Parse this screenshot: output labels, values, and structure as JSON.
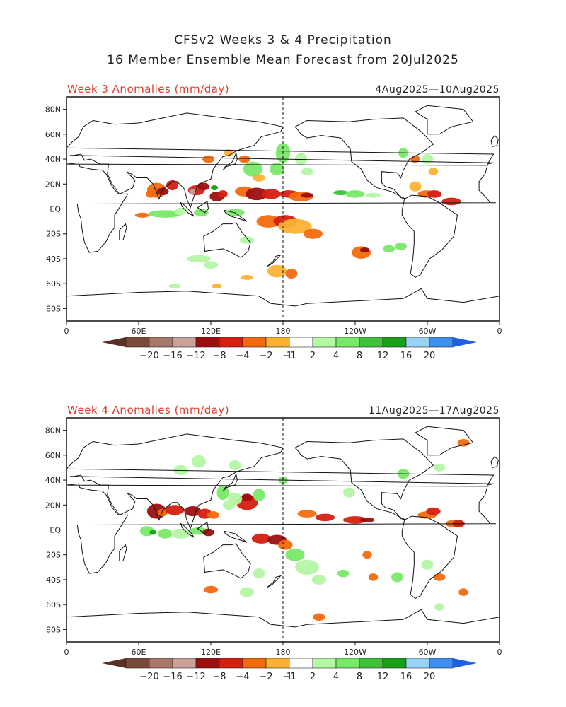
{
  "title": {
    "line1": "CFSv2 Weeks 3 & 4 Precipitation",
    "line2": "16 Member Ensemble Mean Forecast from 20Jul2025"
  },
  "panels": [
    {
      "label": "Week 3 Anomalies (mm/day)",
      "dates": "4Aug2025—10Aug2025"
    },
    {
      "label": "Week 4 Anomalies (mm/day)",
      "dates": "11Aug2025—17Aug2025"
    }
  ],
  "lat_ticks": [
    "80N",
    "60N",
    "40N",
    "20N",
    "EQ",
    "20S",
    "40S",
    "60S",
    "80S"
  ],
  "lon_ticks": [
    "0",
    "60E",
    "120E",
    "180",
    "120W",
    "60W",
    "0"
  ],
  "colorbar": {
    "labels": [
      "−20",
      "−16",
      "−12",
      "−8",
      "−4",
      "−2",
      "−1",
      "1",
      "2",
      "4",
      "8",
      "12",
      "16",
      "20"
    ],
    "colors": [
      "#7a4a3a",
      "#a8776a",
      "#c9a199",
      "#9c0f0f",
      "#d51f10",
      "#f26a0e",
      "#fbb233",
      "#ffffff",
      "#b4f7a4",
      "#78e868",
      "#3fc23a",
      "#18a018",
      "#98d2f5",
      "#3d8ff0"
    ],
    "end_low": "#5c2f24",
    "end_high": "#1f5fe0"
  }
}
